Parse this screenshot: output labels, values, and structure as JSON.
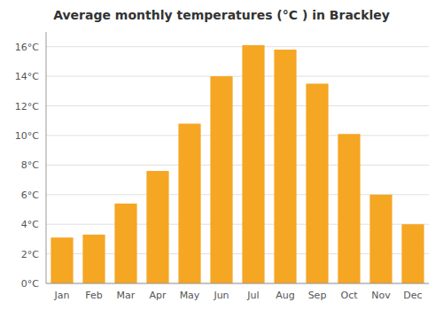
{
  "chart_data": {
    "type": "bar",
    "title": "Average monthly temperatures (°C ) in Brackley",
    "categories": [
      "Jan",
      "Feb",
      "Mar",
      "Apr",
      "May",
      "Jun",
      "Jul",
      "Aug",
      "Sep",
      "Oct",
      "Nov",
      "Dec"
    ],
    "values": [
      3.1,
      3.3,
      5.4,
      7.6,
      10.8,
      14.0,
      16.1,
      15.8,
      13.5,
      10.1,
      6.0,
      4.0
    ],
    "color": "#F5A623",
    "ylim": [
      0,
      17
    ],
    "yticks": [
      {
        "value": 0,
        "label": "0°C"
      },
      {
        "value": 2,
        "label": "2°C"
      },
      {
        "value": 4,
        "label": "4°C"
      },
      {
        "value": 6,
        "label": "6°C"
      },
      {
        "value": 8,
        "label": "8°C"
      },
      {
        "value": 10,
        "label": "10°C"
      },
      {
        "value": 12,
        "label": "12°C"
      },
      {
        "value": 14,
        "label": "14°C"
      },
      {
        "value": 16,
        "label": "16°C"
      }
    ],
    "grid": true
  }
}
